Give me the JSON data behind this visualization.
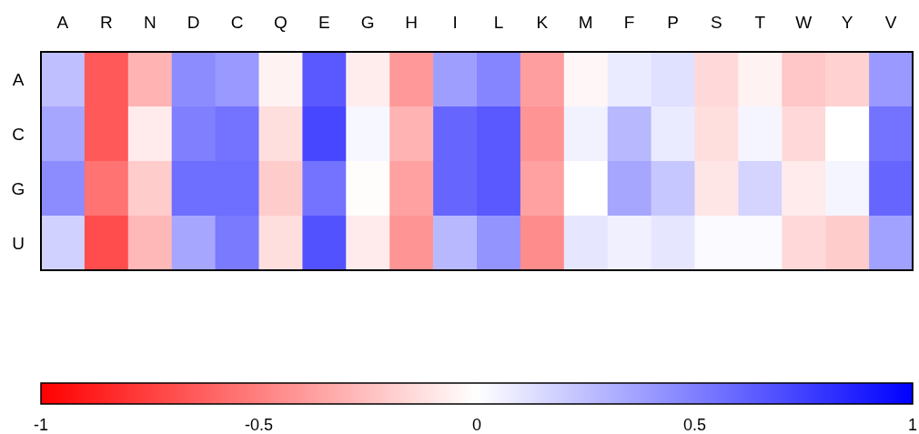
{
  "chart_data": {
    "type": "heatmap",
    "categories": [
      "A",
      "R",
      "N",
      "D",
      "C",
      "Q",
      "E",
      "G",
      "H",
      "I",
      "L",
      "K",
      "M",
      "F",
      "P",
      "S",
      "T",
      "W",
      "Y",
      "V"
    ],
    "y_categories": [
      "A",
      "C",
      "G",
      "U"
    ],
    "cells": [
      [
        0.25,
        -0.65,
        -0.3,
        0.45,
        0.4,
        -0.05,
        0.65,
        -0.07,
        -0.4,
        0.38,
        0.48,
        -0.38,
        -0.03,
        0.08,
        0.12,
        -0.15,
        -0.05,
        -0.22,
        -0.18,
        0.4
      ],
      [
        0.35,
        -0.65,
        -0.08,
        0.5,
        0.55,
        -0.13,
        0.72,
        0.03,
        -0.3,
        0.6,
        0.65,
        -0.42,
        0.05,
        0.28,
        0.08,
        -0.13,
        0.04,
        -0.15,
        0.0,
        0.55
      ],
      [
        0.45,
        -0.55,
        -0.2,
        0.57,
        0.57,
        -0.2,
        0.55,
        -0.01,
        -0.37,
        0.6,
        0.65,
        -0.37,
        0.0,
        0.35,
        0.22,
        -0.1,
        0.17,
        -0.08,
        0.04,
        0.6
      ],
      [
        0.18,
        -0.7,
        -0.28,
        0.35,
        0.52,
        -0.13,
        0.68,
        -0.08,
        -0.42,
        0.28,
        0.42,
        -0.45,
        0.1,
        0.06,
        0.1,
        0.02,
        0.02,
        -0.15,
        -0.2,
        0.37
      ]
    ],
    "clim": [
      -1,
      1
    ],
    "cticks": [
      -1,
      -0.5,
      0,
      0.5,
      1
    ]
  }
}
